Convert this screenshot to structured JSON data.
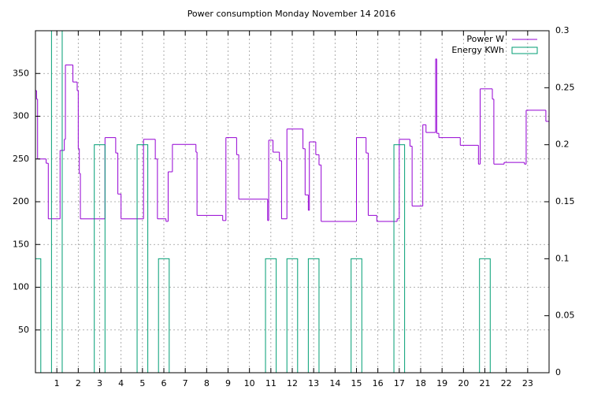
{
  "chart_data": {
    "type": "step",
    "title": "Power consumption Monday November 14 2016",
    "xlim": [
      0,
      24
    ],
    "xticks": [
      1,
      2,
      3,
      4,
      5,
      6,
      7,
      8,
      9,
      10,
      11,
      12,
      13,
      14,
      15,
      16,
      17,
      18,
      19,
      20,
      21,
      22,
      23
    ],
    "ylim": [
      0,
      400
    ],
    "yticks": [
      50,
      100,
      150,
      200,
      250,
      300,
      350
    ],
    "y2lim": [
      0,
      0.3
    ],
    "y2ticks": [
      0,
      0.05,
      0.1,
      0.15,
      0.2,
      0.25,
      0.3
    ],
    "grid": true,
    "legend": "top-right",
    "series": [
      {
        "name": "Power W",
        "color": "#9400d3",
        "type": "step",
        "x": [
          0,
          0.05,
          0.1,
          0.5,
          0.6,
          1.15,
          1.35,
          1.4,
          1.75,
          1.95,
          2.0,
          2.05,
          2.1,
          3.25,
          3.75,
          3.85,
          4.0,
          5.05,
          5.6,
          5.7,
          6.1,
          6.2,
          6.4,
          7.5,
          7.55,
          8.75,
          8.9,
          9.4,
          9.5,
          10.85,
          10.9,
          11.1,
          11.4,
          11.5,
          11.75,
          12.5,
          12.6,
          12.75,
          12.8,
          13.1,
          13.25,
          13.35,
          15.0,
          15.45,
          15.55,
          15.95,
          16.9,
          17.0,
          17.5,
          17.6,
          18.1,
          18.25,
          18.7,
          18.75,
          18.85,
          19.85,
          20.7,
          20.78,
          21.35,
          21.42,
          21.9,
          22.85,
          22.93,
          23.85
        ],
        "values": [
          330,
          320,
          250,
          245,
          180,
          260,
          273,
          360,
          340,
          330,
          262,
          233,
          180,
          275,
          257,
          209,
          180,
          273,
          250,
          180,
          177,
          235,
          267,
          258,
          184,
          178,
          275,
          255,
          203,
          178,
          272,
          258,
          248,
          180,
          285,
          262,
          208,
          190,
          270,
          255,
          243,
          177,
          275,
          257,
          184,
          177,
          180,
          273,
          265,
          195,
          290,
          281,
          367,
          280,
          275,
          266,
          244,
          332,
          320,
          244,
          246,
          244,
          307,
          294
        ]
      },
      {
        "name": "Energy KWh",
        "color": "#009e73",
        "type": "boxes",
        "axis": "y2",
        "x": [
          0,
          1,
          2,
          3,
          4,
          5,
          6,
          7,
          8,
          9,
          10,
          11,
          12,
          13,
          14,
          15,
          16,
          17,
          18,
          19,
          20,
          21,
          22,
          23
        ],
        "values": [
          0.1,
          0.3,
          0,
          0.2,
          0,
          0.2,
          0.1,
          0,
          0,
          0,
          0,
          0.1,
          0.1,
          0.1,
          0,
          0.1,
          0,
          0.2,
          0,
          0,
          0,
          0.1,
          0,
          0
        ]
      }
    ]
  }
}
